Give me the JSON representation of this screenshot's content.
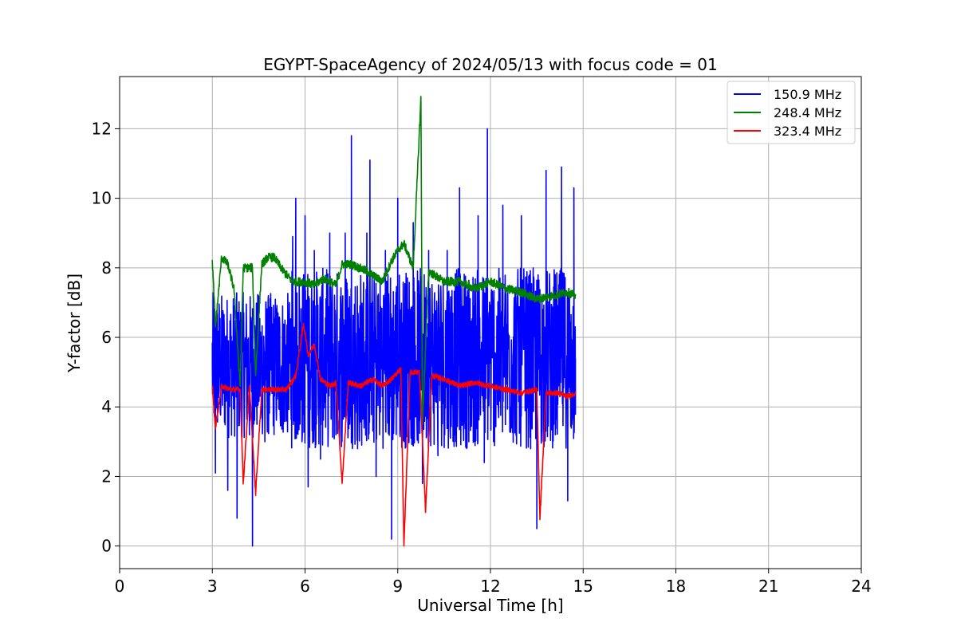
{
  "chart_data": {
    "type": "line",
    "title": "EGYPT-SpaceAgency of 2024/05/13 with focus code = 01",
    "xlabel": "Universal Time [h]",
    "ylabel": "Y-factor [dB]",
    "xlim": [
      0,
      24
    ],
    "ylim": [
      -0.65,
      13.5
    ],
    "xticks": [
      0,
      3,
      6,
      9,
      12,
      15,
      18,
      21,
      24
    ],
    "yticks": [
      0,
      2,
      4,
      6,
      8,
      10,
      12
    ],
    "grid": true,
    "legend_position": "top-right",
    "data_range_hours": [
      3.0,
      14.75
    ],
    "series": [
      {
        "name": "150.9 MHz",
        "color": "#0000ff",
        "sample_points": [
          [
            3.0,
            5.2
          ],
          [
            3.1,
            2.1
          ],
          [
            3.3,
            5.9
          ],
          [
            3.5,
            1.6
          ],
          [
            3.7,
            5.5
          ],
          [
            3.8,
            0.8
          ],
          [
            4.0,
            6.3
          ],
          [
            4.2,
            3.2
          ],
          [
            4.3,
            0.0
          ],
          [
            4.5,
            5.4
          ],
          [
            4.7,
            3.0
          ],
          [
            5.0,
            6.1
          ],
          [
            5.3,
            3.5
          ],
          [
            5.6,
            8.9
          ],
          [
            5.7,
            10.0
          ],
          [
            5.9,
            3.0
          ],
          [
            6.0,
            9.5
          ],
          [
            6.1,
            1.7
          ],
          [
            6.3,
            8.5
          ],
          [
            6.5,
            2.5
          ],
          [
            6.8,
            9.0
          ],
          [
            7.0,
            3.2
          ],
          [
            7.3,
            9.0
          ],
          [
            7.5,
            11.8
          ],
          [
            7.7,
            2.8
          ],
          [
            8.0,
            9.0
          ],
          [
            8.1,
            11.1
          ],
          [
            8.3,
            2.0
          ],
          [
            8.6,
            8.5
          ],
          [
            8.8,
            0.2
          ],
          [
            9.0,
            10.0
          ],
          [
            9.2,
            3.0
          ],
          [
            9.5,
            9.3
          ],
          [
            9.8,
            1.8
          ],
          [
            10.0,
            8.5
          ],
          [
            10.3,
            2.6
          ],
          [
            10.6,
            8.5
          ],
          [
            10.8,
            3.2
          ],
          [
            11.0,
            10.3
          ],
          [
            11.3,
            3.0
          ],
          [
            11.6,
            9.5
          ],
          [
            11.8,
            2.4
          ],
          [
            11.9,
            12.0
          ],
          [
            12.1,
            3.0
          ],
          [
            12.4,
            9.8
          ],
          [
            12.7,
            3.4
          ],
          [
            13.0,
            9.5
          ],
          [
            13.3,
            2.8
          ],
          [
            13.5,
            0.5
          ],
          [
            13.8,
            10.8
          ],
          [
            14.1,
            3.2
          ],
          [
            14.3,
            10.9
          ],
          [
            14.5,
            1.3
          ],
          [
            14.7,
            10.3
          ],
          [
            14.75,
            5.4
          ]
        ]
      },
      {
        "name": "248.4 MHz",
        "color": "#008000",
        "sample_points": [
          [
            3.0,
            8.2
          ],
          [
            3.1,
            6.3
          ],
          [
            3.3,
            8.3
          ],
          [
            3.5,
            8.1
          ],
          [
            3.7,
            7.4
          ],
          [
            3.9,
            4.6
          ],
          [
            4.0,
            8.0
          ],
          [
            4.3,
            8.0
          ],
          [
            4.4,
            4.9
          ],
          [
            4.6,
            8.1
          ],
          [
            4.8,
            8.3
          ],
          [
            5.0,
            8.3
          ],
          [
            5.3,
            7.9
          ],
          [
            5.6,
            7.6
          ],
          [
            6.0,
            7.6
          ],
          [
            6.3,
            7.5
          ],
          [
            6.6,
            7.7
          ],
          [
            7.0,
            7.5
          ],
          [
            7.2,
            8.1
          ],
          [
            7.5,
            8.1
          ],
          [
            8.0,
            7.9
          ],
          [
            8.5,
            7.6
          ],
          [
            8.8,
            8.2
          ],
          [
            9.0,
            8.5
          ],
          [
            9.2,
            8.7
          ],
          [
            9.5,
            8.0
          ],
          [
            9.75,
            12.9
          ],
          [
            9.8,
            3.5
          ],
          [
            10.0,
            7.9
          ],
          [
            10.5,
            7.6
          ],
          [
            11.0,
            7.6
          ],
          [
            11.5,
            7.4
          ],
          [
            12.0,
            7.6
          ],
          [
            12.5,
            7.4
          ],
          [
            13.0,
            7.3
          ],
          [
            13.5,
            7.1
          ],
          [
            14.0,
            7.2
          ],
          [
            14.5,
            7.3
          ],
          [
            14.75,
            7.2
          ]
        ]
      },
      {
        "name": "323.4 MHz",
        "color": "#ff0000",
        "sample_points": [
          [
            3.0,
            4.6
          ],
          [
            3.1,
            3.4
          ],
          [
            3.3,
            4.6
          ],
          [
            3.6,
            4.5
          ],
          [
            3.9,
            4.5
          ],
          [
            4.0,
            1.8
          ],
          [
            4.2,
            4.6
          ],
          [
            4.4,
            1.5
          ],
          [
            4.6,
            4.5
          ],
          [
            5.0,
            4.5
          ],
          [
            5.4,
            4.5
          ],
          [
            5.7,
            4.9
          ],
          [
            5.95,
            6.4
          ],
          [
            6.1,
            5.5
          ],
          [
            6.3,
            5.8
          ],
          [
            6.5,
            4.8
          ],
          [
            6.8,
            4.6
          ],
          [
            7.0,
            4.7
          ],
          [
            7.2,
            1.8
          ],
          [
            7.4,
            4.7
          ],
          [
            7.8,
            4.6
          ],
          [
            8.2,
            4.8
          ],
          [
            8.5,
            4.6
          ],
          [
            8.8,
            4.8
          ],
          [
            9.1,
            5.1
          ],
          [
            9.2,
            0.0
          ],
          [
            9.4,
            5.0
          ],
          [
            9.7,
            5.0
          ],
          [
            9.9,
            1.0
          ],
          [
            10.1,
            4.9
          ],
          [
            10.5,
            4.8
          ],
          [
            11.0,
            4.6
          ],
          [
            11.5,
            4.7
          ],
          [
            12.0,
            4.6
          ],
          [
            12.5,
            4.5
          ],
          [
            13.0,
            4.4
          ],
          [
            13.5,
            4.5
          ],
          [
            13.6,
            0.8
          ],
          [
            13.8,
            4.4
          ],
          [
            14.2,
            4.4
          ],
          [
            14.5,
            4.3
          ],
          [
            14.75,
            4.4
          ]
        ]
      }
    ]
  }
}
